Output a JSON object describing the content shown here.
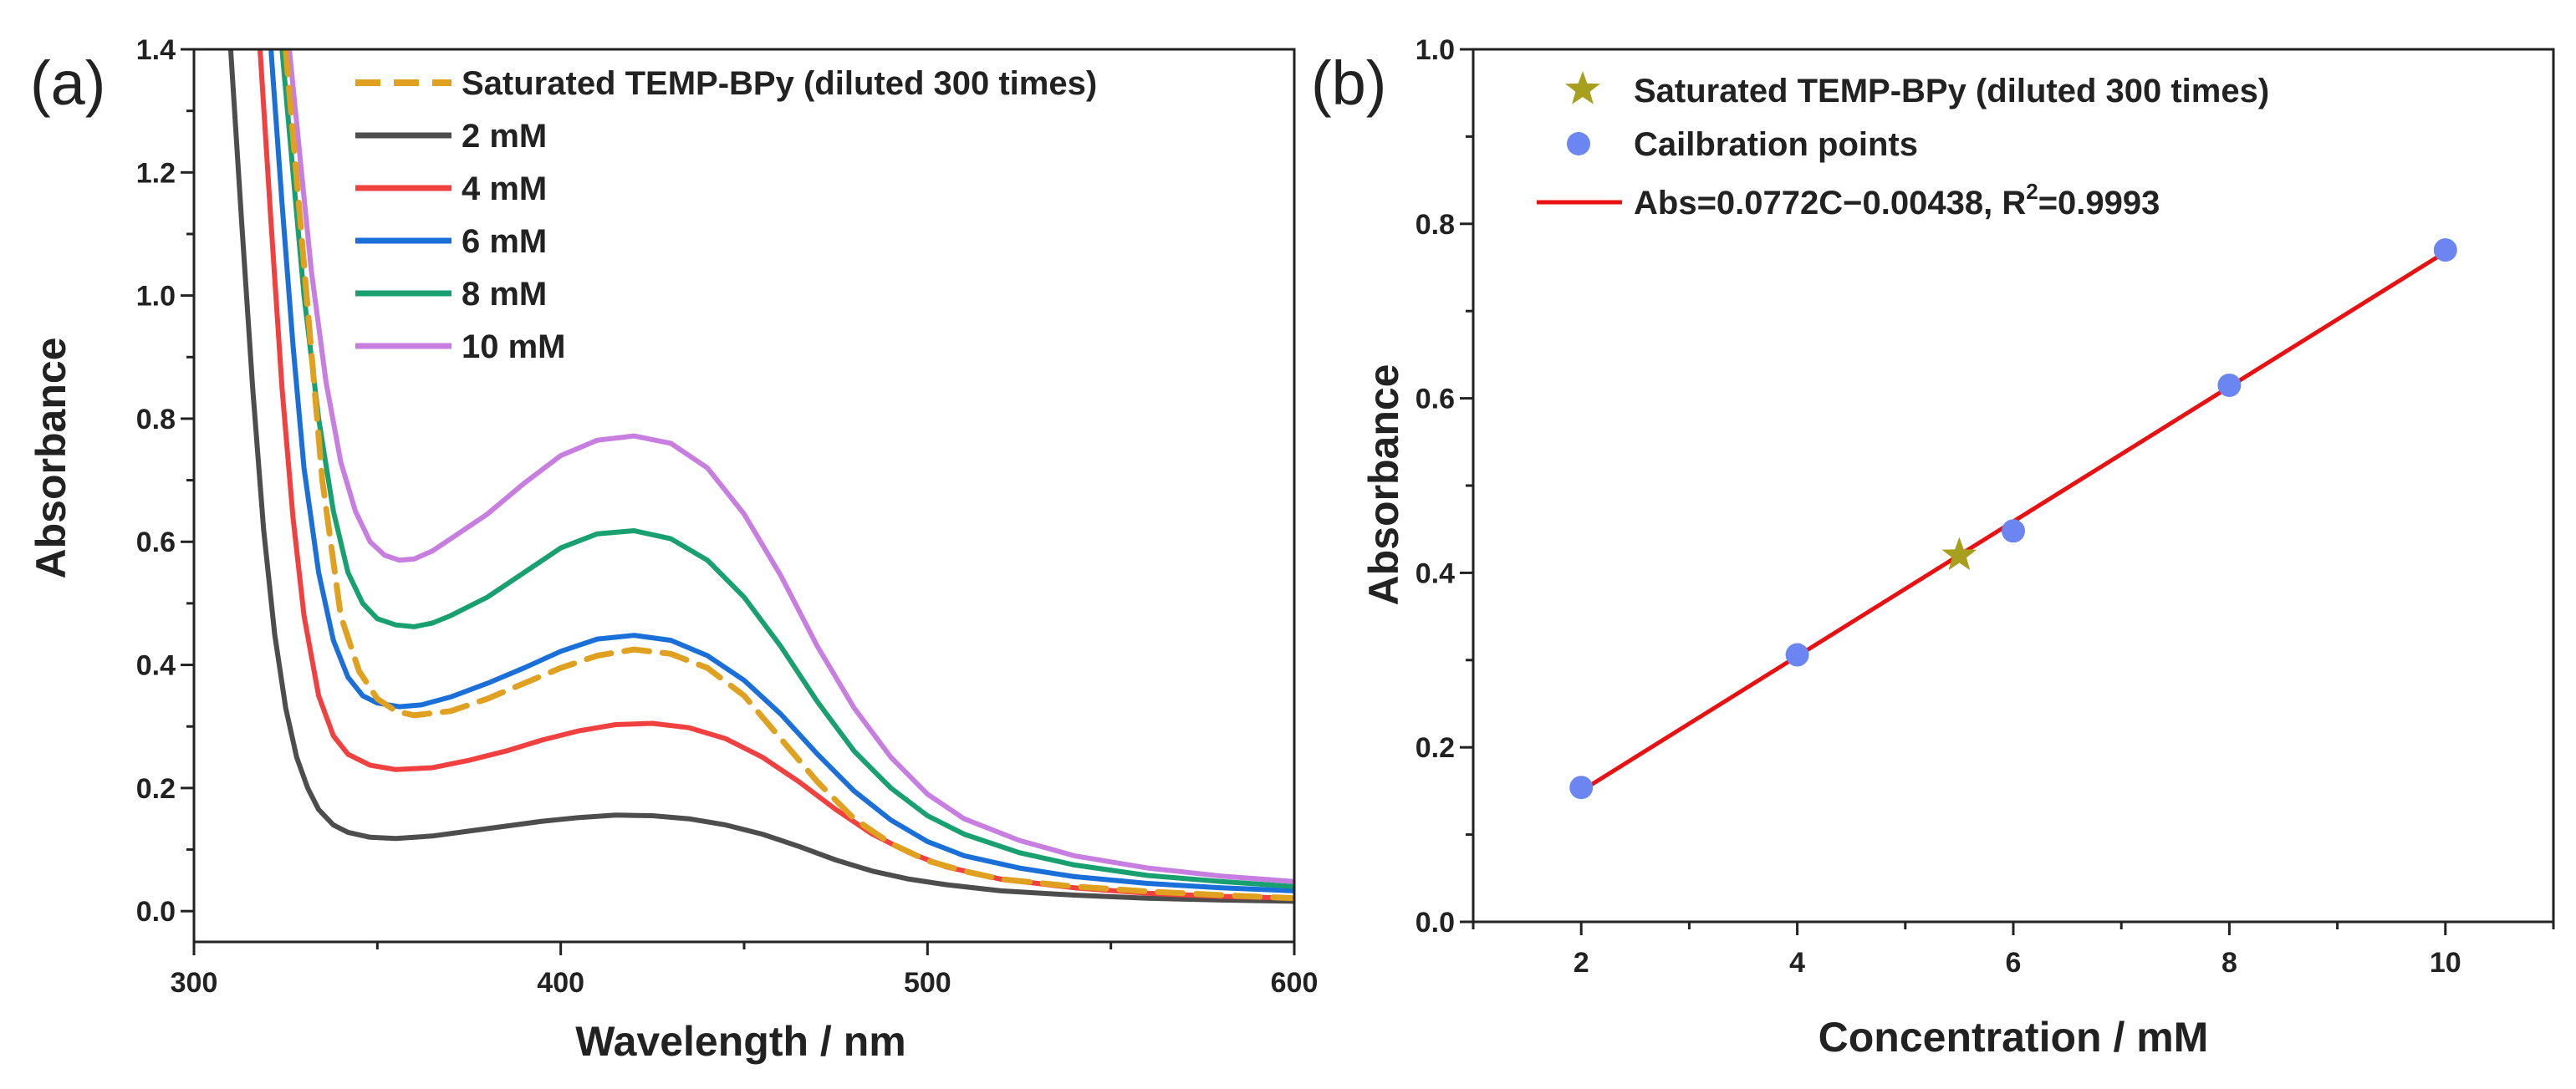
{
  "chart_data": [
    {
      "panel_label": "(a)",
      "type": "line",
      "xlabel": "Wavelength / nm",
      "ylabel": "Absorbance",
      "xlim": [
        300,
        600
      ],
      "ylim": [
        -0.05,
        1.4
      ],
      "xticks": [
        300,
        400,
        500,
        600
      ],
      "yticks": [
        0.0,
        0.2,
        0.4,
        0.6,
        0.8,
        1.0,
        1.2,
        1.4
      ],
      "ytick_labels": [
        "0.0",
        "0.2",
        "0.4",
        "0.6",
        "0.8",
        "1.0",
        "1.2",
        "1.4"
      ],
      "grid": false,
      "legend_position": "top-right",
      "series": [
        {
          "name": "Saturated TEMP-BPy (diluted 300 times)",
          "color": "#E0A020",
          "dash": true,
          "x": [
            325,
            330,
            335,
            340,
            345,
            350,
            355,
            360,
            370,
            380,
            390,
            400,
            410,
            420,
            430,
            440,
            450,
            460,
            470,
            480,
            490,
            500,
            510,
            520,
            540,
            560,
            580,
            600
          ],
          "y": [
            1.4,
            1.05,
            0.7,
            0.48,
            0.39,
            0.345,
            0.325,
            0.318,
            0.325,
            0.345,
            0.37,
            0.395,
            0.415,
            0.425,
            0.418,
            0.395,
            0.35,
            0.28,
            0.21,
            0.15,
            0.11,
            0.082,
            0.065,
            0.052,
            0.04,
            0.032,
            0.026,
            0.021
          ]
        },
        {
          "name": "2 mM",
          "color": "#4D4D4D",
          "dash": false,
          "x": [
            310,
            313,
            316,
            319,
            322,
            325,
            328,
            331,
            334,
            338,
            342,
            348,
            355,
            365,
            375,
            385,
            395,
            405,
            415,
            425,
            435,
            445,
            455,
            465,
            475,
            485,
            495,
            505,
            520,
            540,
            560,
            580,
            600
          ],
          "y": [
            1.4,
            1.12,
            0.85,
            0.62,
            0.45,
            0.33,
            0.25,
            0.2,
            0.165,
            0.14,
            0.128,
            0.12,
            0.118,
            0.122,
            0.13,
            0.138,
            0.146,
            0.152,
            0.156,
            0.155,
            0.15,
            0.14,
            0.125,
            0.105,
            0.083,
            0.065,
            0.052,
            0.043,
            0.033,
            0.026,
            0.021,
            0.018,
            0.016
          ]
        },
        {
          "name": "4 mM",
          "color": "#F04040",
          "dash": false,
          "x": [
            318,
            321,
            324,
            327,
            330,
            334,
            338,
            342,
            348,
            355,
            365,
            375,
            385,
            395,
            405,
            415,
            425,
            435,
            445,
            455,
            465,
            475,
            485,
            495,
            505,
            520,
            540,
            560,
            580,
            600
          ],
          "y": [
            1.4,
            1.12,
            0.85,
            0.64,
            0.48,
            0.35,
            0.285,
            0.255,
            0.237,
            0.23,
            0.233,
            0.245,
            0.26,
            0.278,
            0.293,
            0.303,
            0.305,
            0.298,
            0.28,
            0.25,
            0.21,
            0.165,
            0.125,
            0.095,
            0.072,
            0.052,
            0.038,
            0.029,
            0.024,
            0.021
          ]
        },
        {
          "name": "6 mM",
          "color": "#1A6FD8",
          "dash": false,
          "x": [
            321,
            324,
            327,
            330,
            334,
            338,
            342,
            346,
            350,
            356,
            362,
            370,
            380,
            390,
            400,
            410,
            420,
            430,
            440,
            450,
            460,
            470,
            480,
            490,
            500,
            510,
            525,
            540,
            560,
            580,
            600
          ],
          "y": [
            1.4,
            1.15,
            0.92,
            0.72,
            0.55,
            0.44,
            0.38,
            0.35,
            0.338,
            0.332,
            0.335,
            0.348,
            0.37,
            0.395,
            0.422,
            0.442,
            0.448,
            0.44,
            0.415,
            0.375,
            0.32,
            0.255,
            0.195,
            0.148,
            0.113,
            0.09,
            0.07,
            0.056,
            0.045,
            0.038,
            0.033
          ]
        },
        {
          "name": "8 mM",
          "color": "#18A070",
          "dash": false,
          "x": [
            324,
            327,
            330,
            334,
            338,
            342,
            346,
            350,
            355,
            360,
            365,
            370,
            380,
            390,
            400,
            410,
            420,
            430,
            440,
            450,
            460,
            470,
            480,
            490,
            500,
            510,
            525,
            540,
            560,
            580,
            600
          ],
          "y": [
            1.4,
            1.2,
            1.0,
            0.8,
            0.65,
            0.55,
            0.5,
            0.475,
            0.465,
            0.462,
            0.468,
            0.48,
            0.51,
            0.55,
            0.59,
            0.613,
            0.618,
            0.605,
            0.57,
            0.51,
            0.43,
            0.34,
            0.26,
            0.2,
            0.155,
            0.125,
            0.095,
            0.075,
            0.058,
            0.048,
            0.04
          ]
        },
        {
          "name": "10 mM",
          "color": "#C77EE0",
          "dash": false,
          "x": [
            326,
            329,
            332,
            336,
            340,
            344,
            348,
            352,
            356,
            360,
            365,
            370,
            380,
            390,
            400,
            410,
            420,
            430,
            440,
            450,
            460,
            470,
            480,
            490,
            500,
            510,
            525,
            540,
            560,
            580,
            600
          ],
          "y": [
            1.4,
            1.22,
            1.04,
            0.86,
            0.73,
            0.65,
            0.6,
            0.578,
            0.57,
            0.572,
            0.585,
            0.605,
            0.645,
            0.695,
            0.74,
            0.765,
            0.772,
            0.76,
            0.72,
            0.645,
            0.545,
            0.43,
            0.33,
            0.25,
            0.19,
            0.15,
            0.115,
            0.09,
            0.07,
            0.057,
            0.048
          ]
        }
      ]
    },
    {
      "panel_label": "(b)",
      "type": "scatter",
      "xlabel": "Concentration / mM",
      "ylabel": "Absorbance",
      "xlim": [
        1,
        11
      ],
      "ylim": [
        0.0,
        1.0
      ],
      "xticks": [
        2,
        4,
        6,
        8,
        10
      ],
      "xtick_labels": [
        "2",
        "4",
        "6",
        "8",
        "10"
      ],
      "xminor": [
        1,
        3,
        5,
        7,
        9,
        11
      ],
      "yticks": [
        0.0,
        0.2,
        0.4,
        0.6,
        0.8,
        1.0
      ],
      "ytick_labels": [
        "0.0",
        "0.2",
        "0.4",
        "0.6",
        "0.8",
        "1.0"
      ],
      "grid": false,
      "legend_position": "top-left",
      "series": [
        {
          "name": "Saturated TEMP-BPy (diluted 300 times)",
          "marker": "star",
          "color": "#A6A01E",
          "x": [
            5.5
          ],
          "y": [
            0.42
          ]
        },
        {
          "name": "Cailbration points",
          "marker": "circle",
          "color": "#6B86F0",
          "x": [
            2,
            4,
            6,
            8,
            10
          ],
          "y": [
            0.154,
            0.306,
            0.448,
            0.615,
            0.77
          ]
        }
      ],
      "fit": {
        "name_prefix": "Abs=0.0772C−0.00438, R",
        "name_sup": "2",
        "name_suffix": "=0.9993",
        "color": "#E81010",
        "slope": 0.0772,
        "intercept": -0.00438,
        "x_range": [
          2,
          10
        ]
      }
    }
  ]
}
